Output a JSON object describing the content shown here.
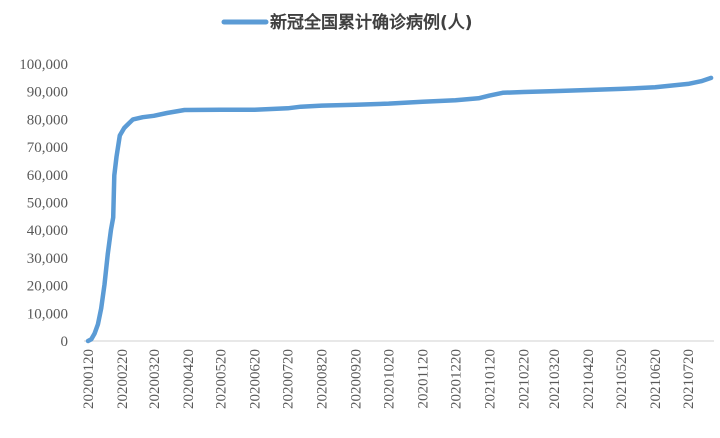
{
  "chart_data": {
    "type": "line",
    "title": "",
    "xlabel": "",
    "ylabel": "",
    "ylim": [
      0,
      100000
    ],
    "yticks": [
      0,
      10000,
      20000,
      30000,
      40000,
      50000,
      60000,
      70000,
      80000,
      90000,
      100000
    ],
    "ytick_labels": [
      "0",
      "10,000",
      "20,000",
      "30,000",
      "40,000",
      "50,000",
      "60,000",
      "70,000",
      "80,000",
      "90,000",
      "100,000"
    ],
    "xtick_labels": [
      "20200120",
      "20200220",
      "20200320",
      "20200420",
      "20200520",
      "20200620",
      "20200720",
      "20200820",
      "20200920",
      "20201020",
      "20201120",
      "20201220",
      "20210120",
      "20210220",
      "20210320",
      "20210420",
      "20210520",
      "20210620",
      "20210720"
    ],
    "grid": false,
    "legend": "top",
    "series": [
      {
        "name": "新冠全国累计确诊病例(人)",
        "color": "#5B9BD5",
        "points": [
          [
            "20200120",
            0
          ],
          [
            "20200123",
            600
          ],
          [
            "20200126",
            2700
          ],
          [
            "20200129",
            6000
          ],
          [
            "20200201",
            11800
          ],
          [
            "20200204",
            20400
          ],
          [
            "20200207",
            31200
          ],
          [
            "20200210",
            40200
          ],
          [
            "20200212",
            44600
          ],
          [
            "20200213",
            59800
          ],
          [
            "20200215",
            66500
          ],
          [
            "20200218",
            74200
          ],
          [
            "20200222",
            76900
          ],
          [
            "20200226",
            78500
          ],
          [
            "20200301",
            80000
          ],
          [
            "20200310",
            80800
          ],
          [
            "20200320",
            81300
          ],
          [
            "20200401",
            82300
          ],
          [
            "20200417",
            83400
          ],
          [
            "20200520",
            83500
          ],
          [
            "20200620",
            83500
          ],
          [
            "20200720",
            84000
          ],
          [
            "20200801",
            84600
          ],
          [
            "20200820",
            85000
          ],
          [
            "20200920",
            85300
          ],
          [
            "20201020",
            85700
          ],
          [
            "20201120",
            86400
          ],
          [
            "20201220",
            86900
          ],
          [
            "20210110",
            87600
          ],
          [
            "20210120",
            88600
          ],
          [
            "20210201",
            89600
          ],
          [
            "20210220",
            89900
          ],
          [
            "20210320",
            90200
          ],
          [
            "20210420",
            90600
          ],
          [
            "20210520",
            91000
          ],
          [
            "20210620",
            91600
          ],
          [
            "20210720",
            92800
          ],
          [
            "20210801",
            93800
          ],
          [
            "20210810",
            95000
          ]
        ]
      }
    ]
  }
}
